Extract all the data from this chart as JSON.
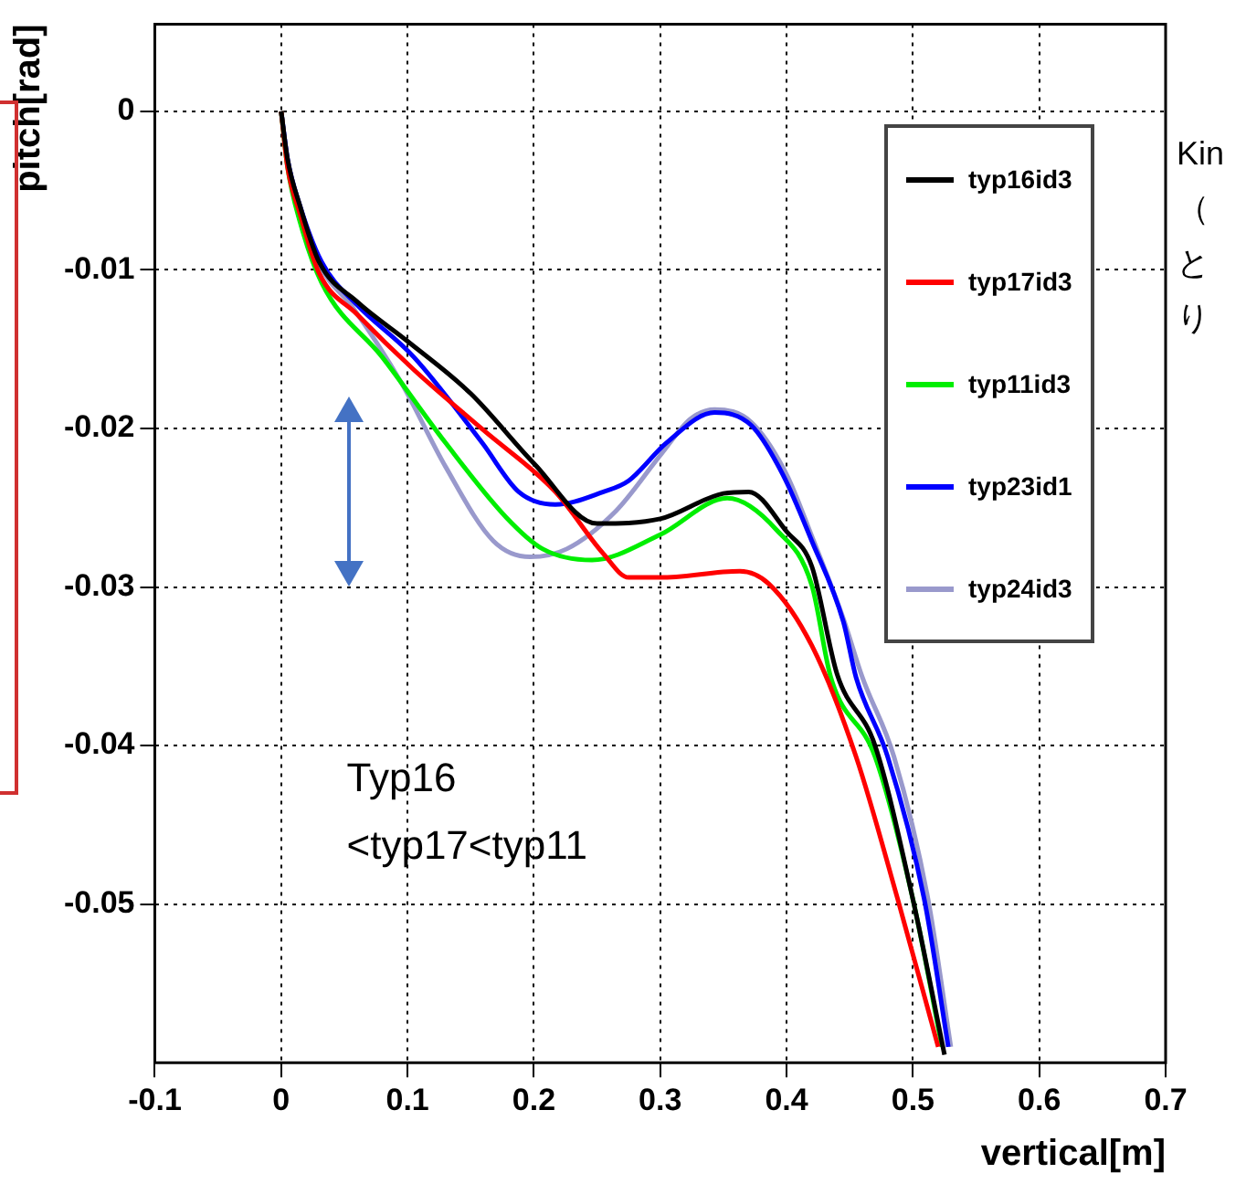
{
  "chart_data": {
    "type": "line",
    "xlabel": "vertical[m]",
    "ylabel": "pitch[rad]",
    "xlim": [
      -0.1,
      0.7
    ],
    "xticks": [
      -0.1,
      0,
      0.1,
      0.2,
      0.3,
      0.4,
      0.5,
      0.6,
      0.7
    ],
    "ylim": [
      -0.06,
      0.0055
    ],
    "yticks": [
      0,
      -0.01,
      -0.02,
      -0.03,
      -0.04,
      -0.05
    ],
    "grid": true,
    "legend": "top right",
    "marker": "none",
    "line_style": "solid",
    "annotations": [
      "Typ16",
      "<typ17<typ11",
      "Kin",
      "（",
      "と",
      "り"
    ],
    "series": [
      {
        "name": "typ16id3",
        "color": "#000000",
        "x": [
          0,
          0.005,
          0.015,
          0.03,
          0.06,
          0.1,
          0.15,
          0.2,
          0.25,
          0.3,
          0.35,
          0.37,
          0.4,
          0.42,
          0.44,
          0.47,
          0.5,
          0.525
        ],
        "values": [
          0,
          -0.003,
          -0.006,
          -0.0095,
          -0.012,
          -0.0145,
          -0.0178,
          -0.0222,
          -0.026,
          -0.0257,
          -0.0241,
          -0.024,
          -0.0265,
          -0.0287,
          -0.0355,
          -0.04,
          -0.0497,
          -0.0595
        ]
      },
      {
        "name": "typ17id3",
        "color": "#ff0000",
        "x": [
          0,
          0.005,
          0.015,
          0.03,
          0.06,
          0.105,
          0.16,
          0.217,
          0.255,
          0.275,
          0.3,
          0.363,
          0.386,
          0.42,
          0.455,
          0.488,
          0.52
        ],
        "values": [
          0,
          -0.0035,
          -0.0065,
          -0.0102,
          -0.0128,
          -0.0163,
          -0.0201,
          -0.024,
          -0.0279,
          -0.0294,
          -0.0294,
          -0.029,
          -0.0298,
          -0.0337,
          -0.0407,
          -0.0497,
          -0.059
        ]
      },
      {
        "name": "typ11id3",
        "color": "#00ee00",
        "x": [
          0,
          0.005,
          0.015,
          0.032,
          0.08,
          0.13,
          0.178,
          0.207,
          0.246,
          0.3,
          0.353,
          0.392,
          0.42,
          0.435,
          0.47,
          0.5,
          0.523
        ],
        "values": [
          0,
          -0.0035,
          -0.007,
          -0.0108,
          -0.0155,
          -0.0209,
          -0.0256,
          -0.0276,
          -0.0283,
          -0.0267,
          -0.0244,
          -0.0264,
          -0.0299,
          -0.0357,
          -0.0407,
          -0.0497,
          -0.059
        ]
      },
      {
        "name": "typ23id1",
        "color": "#0000ff",
        "x": [
          0,
          0.005,
          0.015,
          0.032,
          0.06,
          0.105,
          0.159,
          0.188,
          0.217,
          0.255,
          0.275,
          0.305,
          0.343,
          0.372,
          0.397,
          0.42,
          0.445,
          0.455,
          0.48,
          0.509,
          0.528
        ],
        "values": [
          0,
          -0.003,
          -0.006,
          -0.0095,
          -0.0122,
          -0.0155,
          -0.0209,
          -0.024,
          -0.0248,
          -0.024,
          -0.0233,
          -0.0209,
          -0.019,
          -0.0198,
          -0.0229,
          -0.0271,
          -0.0322,
          -0.0357,
          -0.0407,
          -0.0497,
          -0.059
        ]
      },
      {
        "name": "typ24id3",
        "color": "#9999cc",
        "x": [
          0,
          0.005,
          0.015,
          0.03,
          0.057,
          0.095,
          0.13,
          0.168,
          0.197,
          0.226,
          0.265,
          0.3,
          0.324,
          0.343,
          0.372,
          0.4,
          0.42,
          0.445,
          0.46,
          0.485,
          0.512,
          0.53
        ],
        "values": [
          0,
          -0.003,
          -0.006,
          -0.0096,
          -0.0124,
          -0.0171,
          -0.0224,
          -0.0271,
          -0.0281,
          -0.0276,
          -0.0252,
          -0.0217,
          -0.0194,
          -0.0188,
          -0.0196,
          -0.0229,
          -0.0268,
          -0.032,
          -0.0357,
          -0.0407,
          -0.0497,
          -0.059
        ]
      }
    ]
  }
}
